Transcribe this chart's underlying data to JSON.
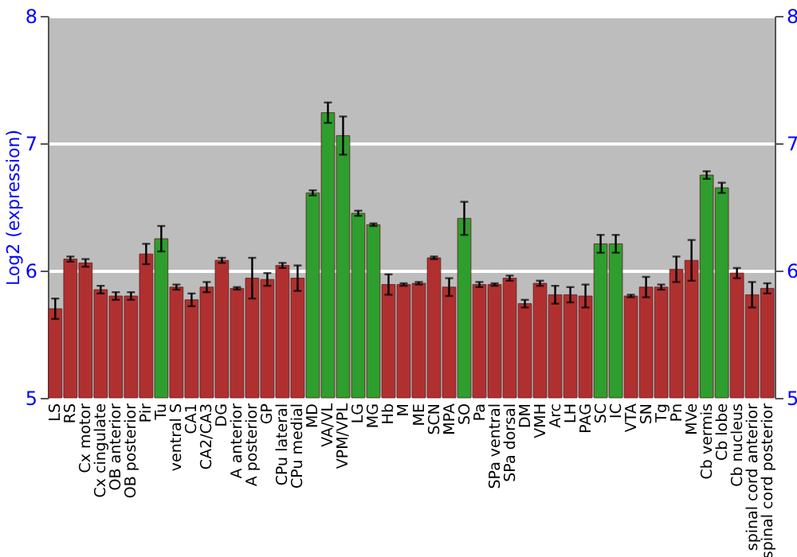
{
  "chart_data": {
    "type": "bar",
    "ylabel": "Log2 (expression)",
    "categories": [
      "LS",
      "RS",
      "Cx motor",
      "Cx cingulate",
      "OB anterior",
      "OB posterior",
      "Pir",
      "Tu",
      "ventral S",
      "CA1",
      "CA2/CA3",
      "DG",
      "A anterior",
      "A posterior",
      "GP",
      "CPu lateral",
      "CPu medial",
      "MD",
      "VA/VL",
      "VPM/VPL",
      "LG",
      "MG",
      "Hb",
      "M",
      "ME",
      "SCN",
      "MPA",
      "SO",
      "Pa",
      "SPa ventral",
      "SPa dorsal",
      "DM",
      "VMH",
      "Arc",
      "LH",
      "PAG",
      "SC",
      "IC",
      "VTA",
      "SN",
      "Tg",
      "Pn",
      "MVe",
      "Cb vermis",
      "Cb lobe",
      "Cb nucleus",
      "spinal cord anterior",
      "spinal cord posterior"
    ],
    "values": [
      5.7,
      6.09,
      6.06,
      5.85,
      5.8,
      5.8,
      6.13,
      6.25,
      5.87,
      5.77,
      5.87,
      6.08,
      5.86,
      5.94,
      5.93,
      6.04,
      5.94,
      6.61,
      7.24,
      7.06,
      6.45,
      6.36,
      5.89,
      5.89,
      5.9,
      6.1,
      5.87,
      6.41,
      5.89,
      5.89,
      5.94,
      5.74,
      5.9,
      5.81,
      5.81,
      5.8,
      6.21,
      6.21,
      5.8,
      5.87,
      5.87,
      6.01,
      6.08,
      6.75,
      6.65,
      5.98,
      5.81,
      5.86
    ],
    "errors": [
      0.08,
      0.02,
      0.03,
      0.03,
      0.03,
      0.03,
      0.08,
      0.1,
      0.02,
      0.05,
      0.04,
      0.02,
      0.01,
      0.16,
      0.05,
      0.02,
      0.1,
      0.02,
      0.08,
      0.15,
      0.02,
      0.01,
      0.08,
      0.01,
      0.01,
      0.01,
      0.07,
      0.13,
      0.02,
      0.01,
      0.02,
      0.03,
      0.02,
      0.07,
      0.06,
      0.09,
      0.07,
      0.07,
      0.01,
      0.08,
      0.02,
      0.1,
      0.16,
      0.03,
      0.04,
      0.04,
      0.1,
      0.04
    ],
    "colors": [
      "#b03030",
      "#b03030",
      "#b03030",
      "#b03030",
      "#b03030",
      "#b03030",
      "#b03030",
      "#2e9e2e",
      "#b03030",
      "#b03030",
      "#b03030",
      "#b03030",
      "#b03030",
      "#b03030",
      "#b03030",
      "#b03030",
      "#b03030",
      "#2e9e2e",
      "#2e9e2e",
      "#2e9e2e",
      "#2e9e2e",
      "#2e9e2e",
      "#b03030",
      "#b03030",
      "#b03030",
      "#b03030",
      "#b03030",
      "#2e9e2e",
      "#b03030",
      "#b03030",
      "#b03030",
      "#b03030",
      "#b03030",
      "#b03030",
      "#b03030",
      "#b03030",
      "#2e9e2e",
      "#2e9e2e",
      "#b03030",
      "#b03030",
      "#b03030",
      "#b03030",
      "#b03030",
      "#2e9e2e",
      "#2e9e2e",
      "#b03030",
      "#b03030",
      "#b03030"
    ],
    "ylim": [
      5,
      8
    ],
    "yticks": [
      5,
      6,
      7,
      8
    ],
    "y2lim": [
      5,
      8
    ],
    "y2ticks": [
      5,
      6,
      7,
      8
    ],
    "grid": "y"
  }
}
